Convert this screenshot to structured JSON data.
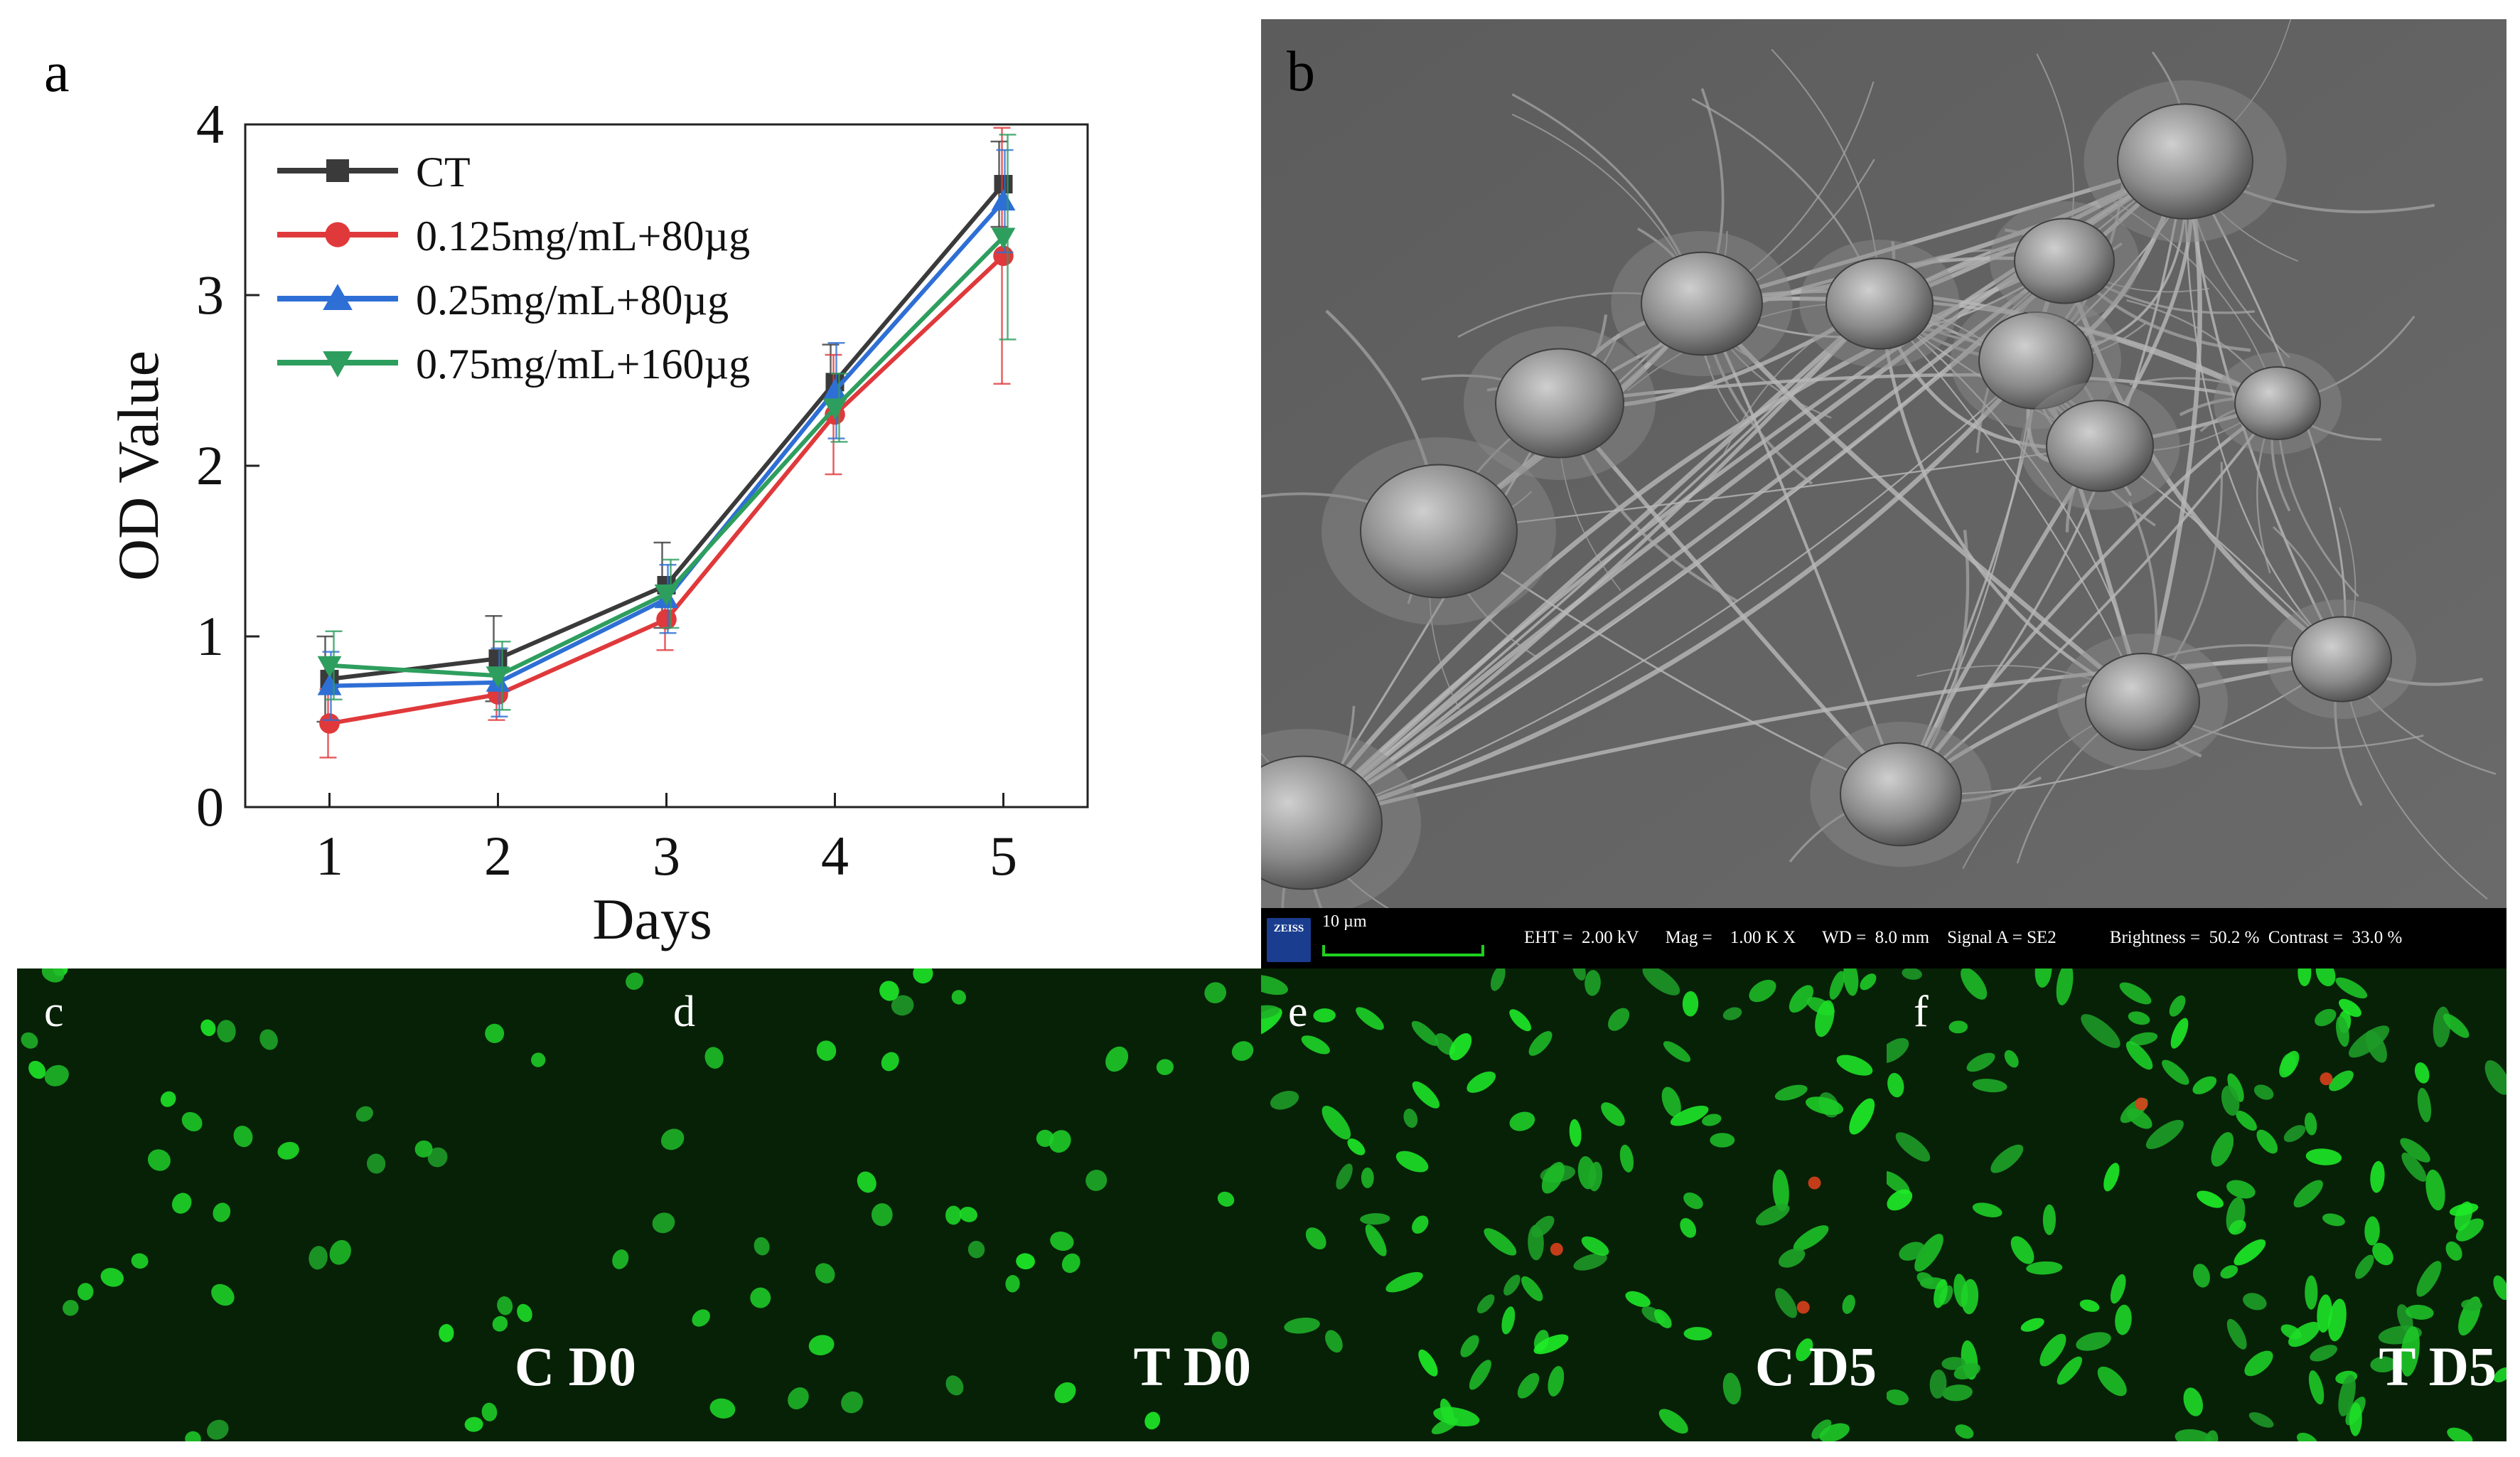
{
  "panels": {
    "a": "a",
    "b": "b",
    "c": "c",
    "d": "d",
    "e": "e",
    "f": "f"
  },
  "chart_data": {
    "type": "line",
    "x": [
      1,
      2,
      3,
      4,
      5
    ],
    "xlabel": "Days",
    "ylabel": "OD Value",
    "xticks": [
      "1",
      "2",
      "3",
      "4",
      "5"
    ],
    "yticks": [
      "0",
      "1",
      "2",
      "3",
      "4"
    ],
    "xlim": [
      0.5,
      5.5
    ],
    "ylim": [
      0,
      4
    ],
    "legend": "top-left",
    "series": [
      {
        "name": "CT",
        "color": "#3a3a3a",
        "marker": "square",
        "values": [
          0.75,
          0.87,
          1.3,
          2.49,
          3.65
        ],
        "err": [
          0.25,
          0.25,
          0.25,
          0.22,
          0.25
        ]
      },
      {
        "name": "0.125mg/mL+80µg",
        "color": "#e0393b",
        "marker": "circle",
        "values": [
          0.49,
          0.66,
          1.1,
          2.3,
          3.23
        ],
        "err": [
          0.2,
          0.15,
          0.18,
          0.35,
          0.75
        ]
      },
      {
        "name": "0.25mg/mL+80µg",
        "color": "#2e6fd6",
        "marker": "triangle-up",
        "values": [
          0.71,
          0.73,
          1.22,
          2.44,
          3.55
        ],
        "err": [
          0.2,
          0.2,
          0.2,
          0.28,
          0.3
        ]
      },
      {
        "name": "0.75mg/mL+160µg",
        "color": "#2e9e5e",
        "marker": "triangle-down",
        "values": [
          0.83,
          0.77,
          1.25,
          2.34,
          3.34
        ],
        "err": [
          0.2,
          0.2,
          0.2,
          0.2,
          0.6
        ]
      }
    ]
  },
  "sem": {
    "scale": "10 µm",
    "logo": "ZEISS",
    "params": "EHT =  2.00 kV      Mag =    1.00 K X      WD =  8.0 mm    Signal A = SE2            Brightness =  50.2 %  Contrast =  33.0 %"
  },
  "fluorescence": [
    {
      "letter": "c",
      "label": "C D0"
    },
    {
      "letter": "d",
      "label": "T D0"
    },
    {
      "letter": "e",
      "label": "C D5"
    },
    {
      "letter": "f",
      "label": "T D5"
    }
  ]
}
